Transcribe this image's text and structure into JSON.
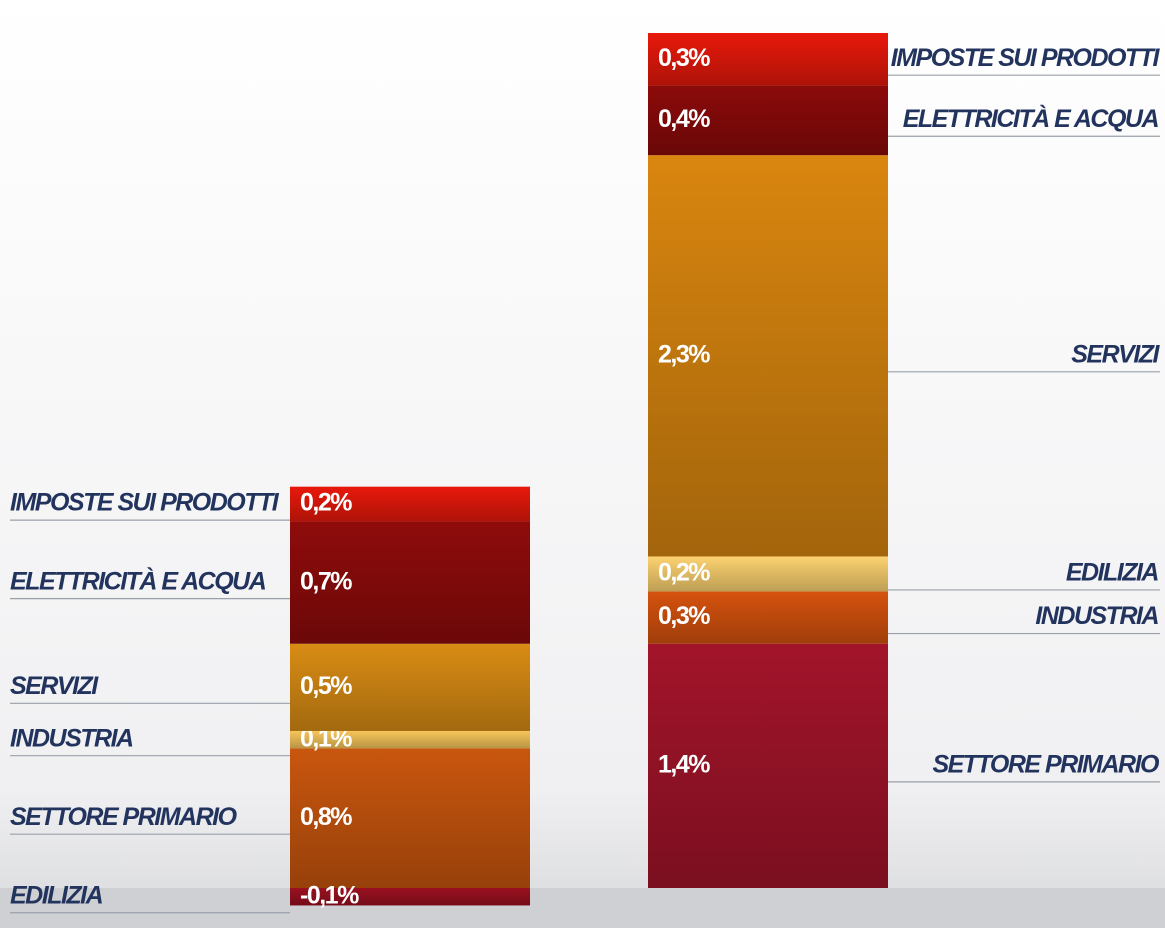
{
  "chart_data": {
    "type": "bar",
    "stacked": true,
    "columns": [
      {
        "segments": [
          {
            "name": "SETTORE PRIMARIO",
            "value": 0.8,
            "value_label": "0,8%",
            "color": "#c9560e"
          },
          {
            "name": "INDUSTRIA",
            "value": 0.1,
            "value_label": "0,1%",
            "color": "#f6c55a"
          },
          {
            "name": "SERVIZI",
            "value": 0.5,
            "value_label": "0,5%",
            "color": "#d98c14"
          },
          {
            "name": "ELETTRICITÀ E ACQUA",
            "value": 0.7,
            "value_label": "0,7%",
            "color": "#8f0b0b"
          },
          {
            "name": "IMPOSTE SUI PRODOTTI",
            "value": 0.2,
            "value_label": "0,2%",
            "color": "#e8190b"
          },
          {
            "name": "EDILIZIA",
            "value": -0.1,
            "value_label": "-0,1%",
            "color": "#9a1020"
          }
        ]
      },
      {
        "segments": [
          {
            "name": "SETTORE PRIMARIO",
            "value": 1.4,
            "value_label": "1,4%",
            "color": "#a3142a"
          },
          {
            "name": "INDUSTRIA",
            "value": 0.3,
            "value_label": "0,3%",
            "color": "#d5520e"
          },
          {
            "name": "EDILIZIA",
            "value": 0.2,
            "value_label": "0,2%",
            "color": "#fcd270"
          },
          {
            "name": "SERVIZI",
            "value": 2.3,
            "value_label": "2,3%",
            "color": "#d9860f"
          },
          {
            "name": "ELETTRICITÀ E ACQUA",
            "value": 0.4,
            "value_label": "0,4%",
            "color": "#8c0a0a"
          },
          {
            "name": "IMPOSTE SUI PRODOTTI",
            "value": 0.3,
            "value_label": "0,3%",
            "color": "#e8190b"
          }
        ]
      }
    ]
  }
}
